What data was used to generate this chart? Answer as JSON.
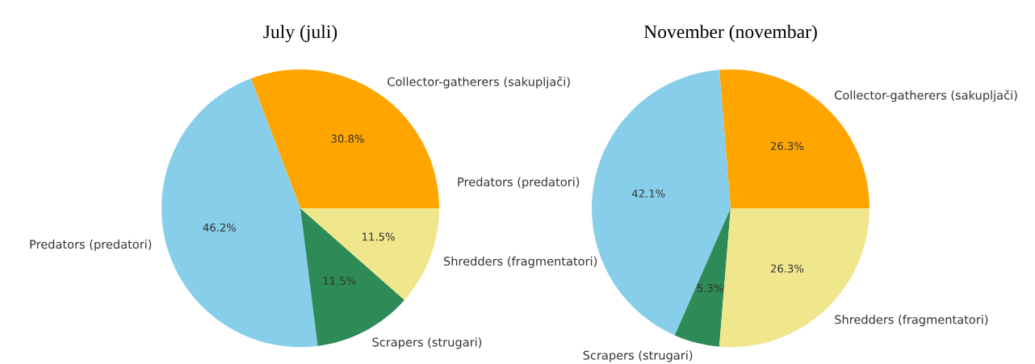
{
  "chart_data": [
    {
      "type": "pie",
      "title": "July (juli)",
      "categories": [
        "Collector-gatherers (sakupljači)",
        "Predators (predatori)",
        "Scrapers (strugari)",
        "Shredders (fragmentatori)"
      ],
      "values": [
        30.8,
        46.2,
        11.5,
        11.5
      ],
      "value_labels": [
        "30.8%",
        "46.2%",
        "11.5%",
        "11.5%"
      ],
      "colors": [
        "#ffa500",
        "#87ceeb",
        "#2e8b57",
        "#f0e68c"
      ],
      "legend": false
    },
    {
      "type": "pie",
      "title": "November (novembar)",
      "categories": [
        "Collector-gatherers (sakupljači)",
        "Predators (predatori)",
        "Scrapers (strugari)",
        "Shredders (fragmentatori)"
      ],
      "values": [
        26.3,
        42.1,
        5.3,
        26.3
      ],
      "value_labels": [
        "26.3%",
        "42.1%",
        "5.3%",
        "26.3%"
      ],
      "colors": [
        "#ffa500",
        "#87ceeb",
        "#2e8b57",
        "#f0e68c"
      ],
      "legend": false
    }
  ]
}
